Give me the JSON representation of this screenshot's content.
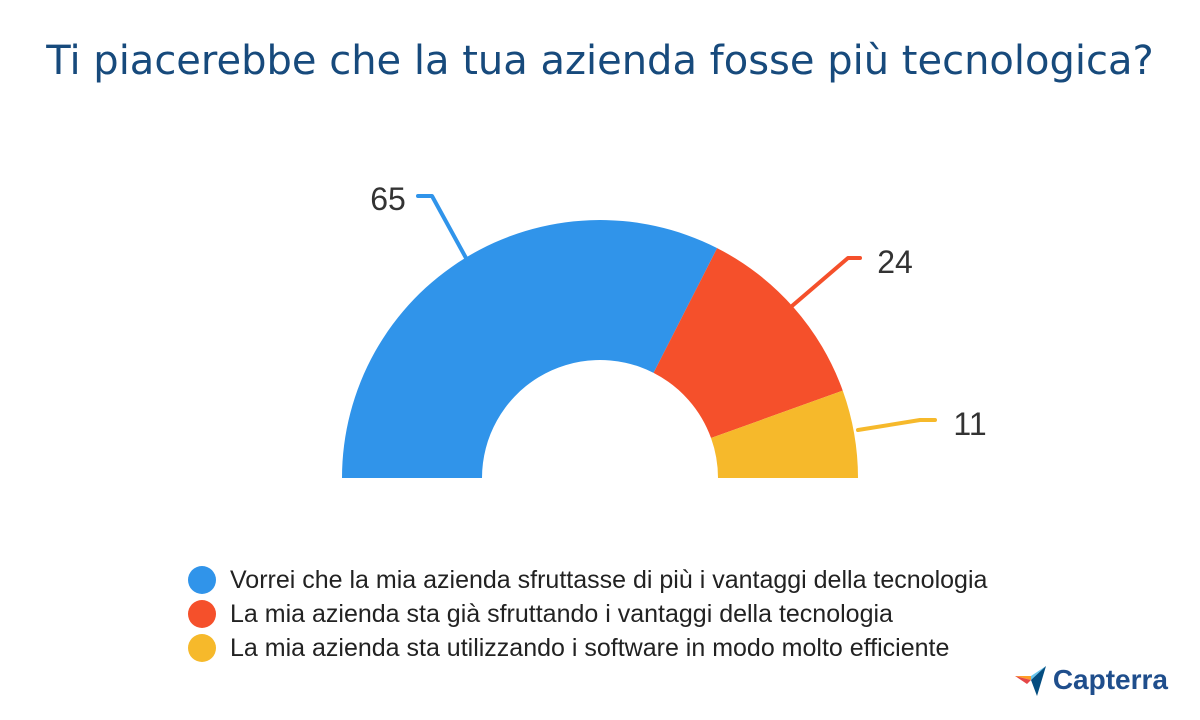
{
  "chart_data": {
    "type": "pie",
    "title": "Ti piacerebbe che la tua azienda fosse più tecnologica?",
    "variant": "half-donut",
    "categories": [
      "Vorrei che la mia azienda sfruttasse di più i vantaggi della tecnologia",
      "La mia azienda sta già sfruttando i vantaggi della tecnologia",
      "La mia azienda sta utilizzando i software in modo molto efficiente"
    ],
    "values": [
      65,
      24,
      11
    ],
    "colors": [
      "#3094ea",
      "#f5502b",
      "#f6b92b"
    ],
    "legend_position": "bottom"
  },
  "brand": {
    "name": "Capterra",
    "icon": "capterra-logo-icon",
    "colors": [
      "#ff9d28",
      "#68c5ed",
      "#044d80",
      "#e54747"
    ]
  }
}
